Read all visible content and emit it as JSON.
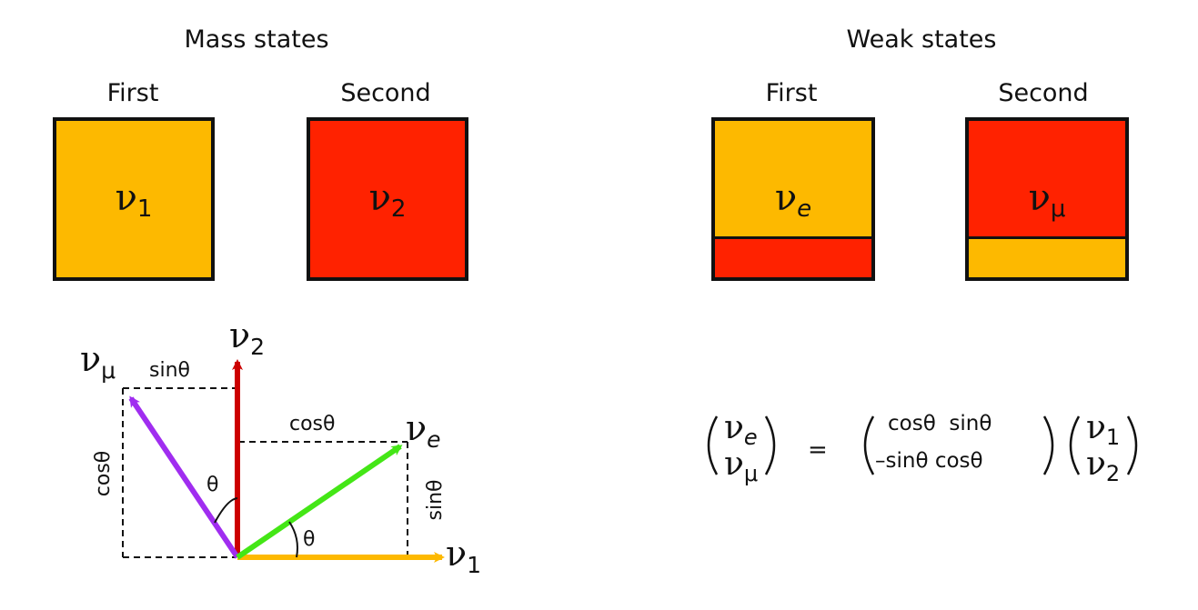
{
  "colors": {
    "orange": "#FDB900",
    "red": "#FF2200",
    "purple": "#A02DF0",
    "green": "#44E616",
    "dark_red": "#CC0000",
    "border": "#111111"
  },
  "mass": {
    "heading": "Mass states",
    "first": {
      "label": "First",
      "nu": "ν",
      "sub": "1"
    },
    "second": {
      "label": "Second",
      "nu": "ν",
      "sub": "2"
    }
  },
  "weak": {
    "heading": "Weak states",
    "first": {
      "label": "First",
      "nu": "ν",
      "sub": "e",
      "main_color": "orange",
      "minor_color": "red",
      "minor_fraction": 0.25
    },
    "second": {
      "label": "Second",
      "nu": "ν",
      "sub": "μ",
      "main_color": "red",
      "minor_color": "orange",
      "minor_fraction": 0.25
    }
  },
  "vector_diagram": {
    "v2": {
      "nu": "ν",
      "sub": "2"
    },
    "v1": {
      "nu": "ν",
      "sub": "1"
    },
    "vmu": {
      "nu": "ν",
      "sub": "μ"
    },
    "ve": {
      "nu": "ν",
      "sub": "e"
    },
    "sin_top": "sinθ",
    "cos_top": "cosθ",
    "cos_left": "cosθ",
    "sin_right": "sinθ",
    "theta_upper": "θ",
    "theta_lower": "θ"
  },
  "equation": {
    "lhs": [
      {
        "nu": "ν",
        "sub": "e"
      },
      {
        "nu": "ν",
        "sub": "μ"
      }
    ],
    "equals": "=",
    "matrix": {
      "row1": "cosθ  sinθ",
      "row2": "–sinθ cosθ"
    },
    "rhs": [
      {
        "nu": "ν",
        "sub": "1"
      },
      {
        "nu": "ν",
        "sub": "2"
      }
    ]
  }
}
